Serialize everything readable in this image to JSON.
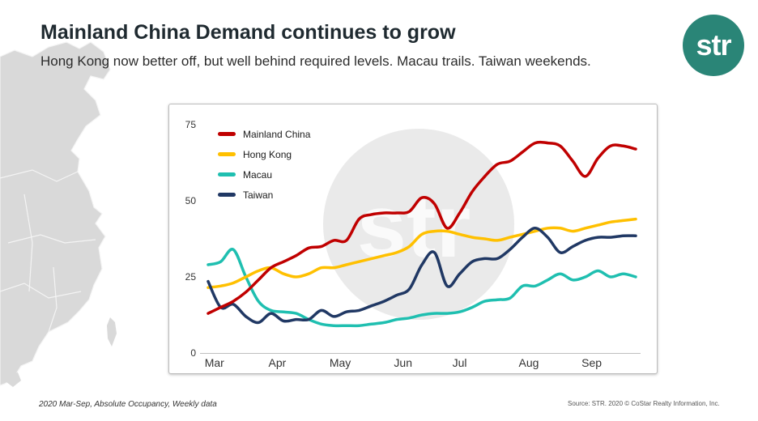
{
  "header": {
    "title": "Mainland China Demand continues to grow",
    "subtitle": "Hong Kong now better off, but well behind required levels. Macau trails. Taiwan weekends."
  },
  "logo": {
    "text": "str",
    "color": "#2a8577"
  },
  "watermark": {
    "text": "str"
  },
  "footer": {
    "note": "2020 Mar-Sep, Absolute Occupancy, Weekly data",
    "source": "Source: STR. 2020 © CoStar Realty Information, Inc."
  },
  "chart_data": {
    "type": "line",
    "title": "",
    "xlabel": "",
    "ylabel": "",
    "ylim": [
      0,
      75
    ],
    "yticks": [
      0,
      25,
      50,
      75
    ],
    "month_labels": [
      "Mar",
      "Apr",
      "May",
      "Jun",
      "Jul",
      "Aug",
      "Sep"
    ],
    "month_positions": [
      0.5,
      5.5,
      10.5,
      15.5,
      20,
      25.5,
      30.5
    ],
    "x": [
      0,
      1,
      2,
      3,
      4,
      5,
      6,
      7,
      8,
      9,
      10,
      11,
      12,
      13,
      14,
      15,
      16,
      17,
      18,
      19,
      20,
      21,
      22,
      23,
      24,
      25,
      26,
      27,
      28,
      29,
      30,
      31,
      32,
      33,
      34
    ],
    "legend_position": "top-left",
    "grid": false,
    "series": [
      {
        "name": "Mainland China",
        "color": "#c00000",
        "values": [
          13,
          15,
          17,
          20,
          24,
          28,
          30,
          32,
          34.5,
          35,
          37,
          37,
          44,
          45.5,
          46,
          46,
          46.5,
          51,
          49,
          41,
          46,
          53,
          58,
          62,
          63,
          66,
          69,
          69,
          68,
          63,
          58,
          64,
          68,
          68,
          67
        ]
      },
      {
        "name": "Hong Kong",
        "color": "#ffc000",
        "values": [
          21.5,
          22,
          23,
          25,
          27,
          28,
          26,
          25,
          26,
          28,
          28,
          29,
          30,
          31,
          32,
          33,
          35,
          39,
          40,
          40,
          39,
          38,
          37.5,
          37,
          38,
          39,
          40,
          41,
          41,
          40,
          41,
          42,
          43,
          43.5,
          44
        ]
      },
      {
        "name": "Macau",
        "color": "#1fbfb0",
        "values": [
          29,
          30,
          34,
          25,
          17,
          14,
          13.5,
          13,
          11,
          9.5,
          9,
          9,
          9,
          9.5,
          10,
          11,
          11.5,
          12.5,
          13,
          13,
          13.5,
          15,
          17,
          17.5,
          18,
          22,
          22,
          24,
          26,
          24,
          25,
          27,
          25,
          26,
          25
        ]
      },
      {
        "name": "Taiwan",
        "color": "#203864",
        "values": [
          23.5,
          15,
          16,
          12,
          10,
          13,
          10.5,
          11,
          11,
          14,
          12,
          13.5,
          14,
          15.5,
          17,
          19,
          21,
          29,
          33,
          22,
          26,
          30,
          31,
          31,
          34,
          38,
          41,
          38,
          33,
          35,
          37,
          38,
          38,
          38.5,
          38.5
        ]
      }
    ]
  }
}
